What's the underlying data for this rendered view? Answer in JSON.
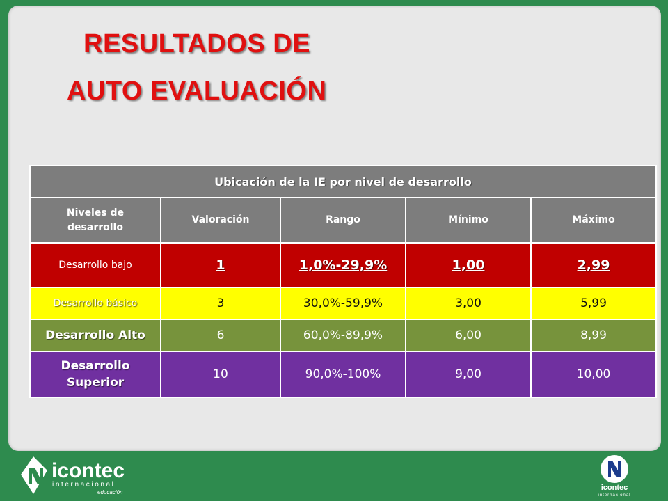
{
  "title": {
    "line1": "RESULTADOS DE",
    "line2": "AUTO EVALUACIÓN"
  },
  "table": {
    "caption": "Ubicación de la IE por nivel de desarrollo",
    "headers": {
      "level_l1": "Niveles de",
      "level_l2": "desarrollo",
      "valoracion": "Valoración",
      "rango": "Rango",
      "minimo": "Mínimo",
      "maximo": "Máximo"
    },
    "rows": [
      {
        "level": "Desarrollo bajo",
        "valoracion": "1",
        "rango": "1,0%-29,9%",
        "minimo": "1,00",
        "maximo": "2,99",
        "color": "#c00000"
      },
      {
        "level": "Desarrollo básico",
        "valoracion": "3",
        "rango": "30,0%-59,9%",
        "minimo": "3,00",
        "maximo": "5,99",
        "color": "#ffff00"
      },
      {
        "level": "Desarrollo Alto",
        "valoracion": "6",
        "rango": "60,0%-89,9%",
        "minimo": "6,00",
        "maximo": "8,99",
        "color": "#77933c"
      },
      {
        "level_l1": "Desarrollo",
        "level_l2": "Superior",
        "valoracion": "10",
        "rango": "90,0%-100%",
        "minimo": "9,00",
        "maximo": "10,00",
        "color": "#7030a0"
      }
    ]
  },
  "logos": {
    "left": {
      "brand": "icontec",
      "sub": "internacional",
      "tag": "educación"
    },
    "right": {
      "brand": "icontec",
      "sub": "internacional"
    }
  },
  "colors": {
    "background": "#2e8b4e",
    "title": "#e01010",
    "header": "#7d7d7d"
  }
}
